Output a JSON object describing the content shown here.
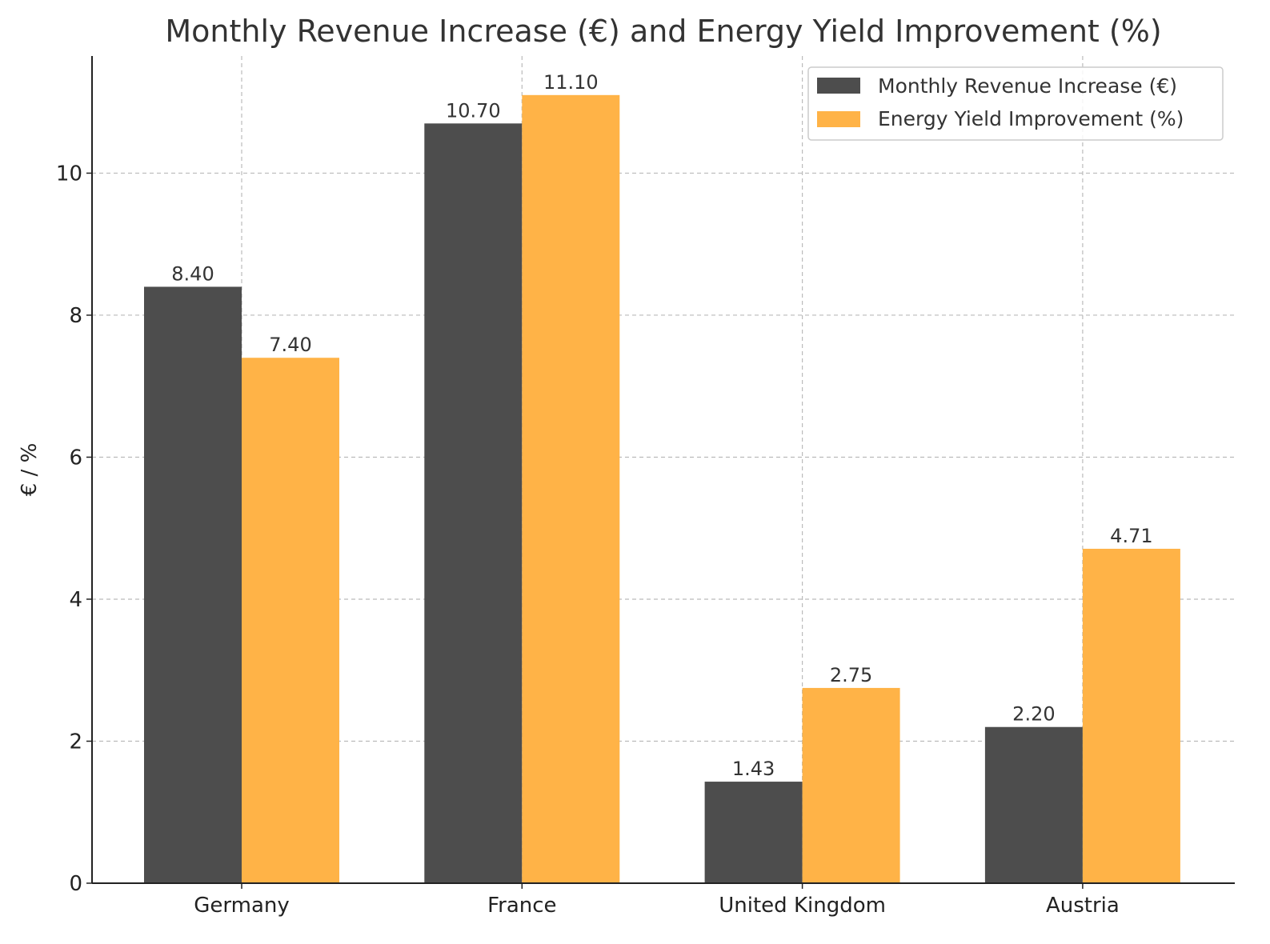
{
  "chart_data": {
    "type": "bar",
    "title": "Monthly Revenue Increase (€) and Energy Yield Improvement (%)",
    "xlabel": "",
    "ylabel": "€ / %",
    "categories": [
      "Germany",
      "France",
      "United Kingdom",
      "Austria"
    ],
    "series": [
      {
        "name": "Monthly Revenue Increase (€)",
        "values": [
          8.4,
          10.7,
          1.43,
          2.2
        ],
        "color": "#4d4d4d",
        "labels": [
          "8.40",
          "10.70",
          "1.43",
          "2.20"
        ]
      },
      {
        "name": "Energy Yield Improvement (%)",
        "values": [
          7.4,
          11.1,
          2.75,
          4.71
        ],
        "color": "#ffb347",
        "labels": [
          "7.40",
          "11.10",
          "2.75",
          "4.71"
        ]
      }
    ],
    "ylim": [
      0,
      11.65
    ],
    "yticks": [
      "0",
      "2",
      "4",
      "6",
      "8",
      "10"
    ],
    "grid": true,
    "legend": "top-right"
  }
}
